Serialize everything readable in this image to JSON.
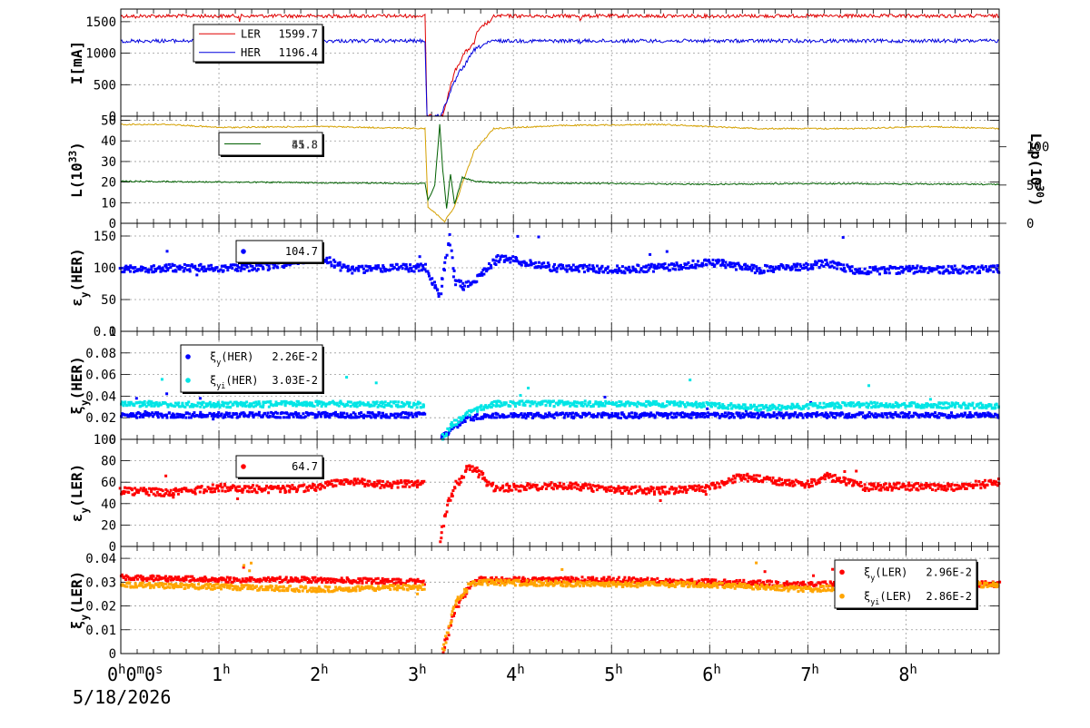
{
  "date_label": "5/18/2026",
  "x_ticks": [
    "0h0m0s",
    "1h",
    "2h",
    "3h",
    "4h",
    "5h",
    "6h",
    "7h",
    "8h"
  ],
  "colors": {
    "LER": "#e00000",
    "HER": "#0000dd",
    "lum": "#d4a000",
    "lsp": "#006000",
    "cyan": "#00e5e5",
    "orange": "#ffa500"
  },
  "chart_data": [
    {
      "type": "line",
      "ylabel": "I[mA]",
      "ylim": [
        0,
        1700
      ],
      "yticks": [
        0,
        500,
        1000,
        1500
      ],
      "x_range_hours": [
        0,
        8.95
      ],
      "series": [
        {
          "name": "LER",
          "value": "1599.7",
          "color": "#e00000",
          "points": [
            [
              0,
              1590
            ],
            [
              0.14,
              1590
            ],
            [
              0.15,
              1540
            ],
            [
              0.17,
              1590
            ],
            [
              1.2,
              1590
            ],
            [
              1.21,
              1520
            ],
            [
              1.23,
              1590
            ],
            [
              3.1,
              1590
            ],
            [
              3.12,
              0
            ],
            [
              3.28,
              0
            ],
            [
              3.33,
              300
            ],
            [
              3.4,
              700
            ],
            [
              3.5,
              1000
            ],
            [
              3.6,
              1150
            ],
            [
              3.62,
              1300
            ],
            [
              3.7,
              1450
            ],
            [
              3.78,
              1520
            ],
            [
              3.8,
              1590
            ],
            [
              4.67,
              1590
            ],
            [
              4.68,
              1530
            ],
            [
              4.7,
              1590
            ],
            [
              8.95,
              1590
            ]
          ]
        },
        {
          "name": "HER",
          "value": "1196.4",
          "color": "#0000dd",
          "points": [
            [
              0,
              1195
            ],
            [
              0.14,
              1195
            ],
            [
              0.15,
              1150
            ],
            [
              0.16,
              1195
            ],
            [
              3.1,
              1195
            ],
            [
              3.12,
              0
            ],
            [
              3.26,
              0
            ],
            [
              3.36,
              400
            ],
            [
              3.45,
              700
            ],
            [
              3.5,
              800
            ],
            [
              3.6,
              1050
            ],
            [
              3.7,
              1140
            ],
            [
              3.8,
              1195
            ],
            [
              4.67,
              1195
            ],
            [
              4.68,
              1170
            ],
            [
              4.7,
              1195
            ],
            [
              8.95,
              1195
            ]
          ]
        }
      ]
    },
    {
      "type": "line",
      "ylabel": "L(10^33)",
      "ylabel_main": "L(10",
      "ylabel_sup": "33",
      "ylim": [
        0,
        52
      ],
      "yticks": [
        0,
        10,
        20,
        30,
        40,
        50
      ],
      "y2label_main": "Lsp(10",
      "y2label_sup": "30",
      "y2lim": [
        0,
        140
      ],
      "y2ticks": [
        0,
        50,
        100
      ],
      "series": [
        {
          "name": "",
          "value": "45.8",
          "color": "#d4a000",
          "points": [
            [
              0,
              48
            ],
            [
              0.5,
              48
            ],
            [
              1,
              46.5
            ],
            [
              2,
              47
            ],
            [
              3.1,
              46
            ],
            [
              3.13,
              8
            ],
            [
              3.3,
              1
            ],
            [
              3.4,
              8
            ],
            [
              3.5,
              22
            ],
            [
              3.6,
              35
            ],
            [
              3.8,
              46
            ],
            [
              4.5,
              47.5
            ],
            [
              5.5,
              48
            ],
            [
              6.5,
              46
            ],
            [
              7.5,
              46
            ],
            [
              8.2,
              47
            ],
            [
              8.95,
              46
            ]
          ]
        },
        {
          "name": "",
          "value": "51.3",
          "color": "#006000",
          "axis": "y2",
          "points": [
            [
              0,
              55
            ],
            [
              1,
              54
            ],
            [
              2,
              53
            ],
            [
              3.1,
              52
            ],
            [
              3.13,
              30
            ],
            [
              3.2,
              50
            ],
            [
              3.25,
              130
            ],
            [
              3.28,
              70
            ],
            [
              3.32,
              20
            ],
            [
              3.36,
              65
            ],
            [
              3.4,
              25
            ],
            [
              3.48,
              60
            ],
            [
              3.6,
              55
            ],
            [
              3.8,
              53
            ],
            [
              5,
              52
            ],
            [
              6,
              51
            ],
            [
              7,
              52
            ],
            [
              8.95,
              51
            ]
          ]
        }
      ]
    },
    {
      "type": "scatter",
      "ylabel": "εy(HER)",
      "ylabel_main": "ε",
      "ylabel_sub": "y",
      "ylabel_tail": "(HER)",
      "ylim": [
        0,
        170
      ],
      "yticks": [
        0,
        50,
        100,
        150
      ],
      "series": [
        {
          "name": "",
          "value": "104.7",
          "color": "#0000ff",
          "points": [
            [
              0,
              97
            ],
            [
              0.5,
              100
            ],
            [
              1,
              99
            ],
            [
              1.5,
              102
            ],
            [
              1.8,
              110
            ],
            [
              2,
              120
            ],
            [
              2.3,
              97
            ],
            [
              2.8,
              100
            ],
            [
              3.1,
              100
            ],
            [
              3.2,
              70
            ],
            [
              3.25,
              55
            ],
            [
              3.3,
              100
            ],
            [
              3.35,
              150
            ],
            [
              3.4,
              80
            ],
            [
              3.5,
              70
            ],
            [
              3.6,
              78
            ],
            [
              3.7,
              95
            ],
            [
              3.85,
              115
            ],
            [
              4,
              112
            ],
            [
              4.4,
              100
            ],
            [
              5,
              97
            ],
            [
              5.5,
              100
            ],
            [
              6,
              108
            ],
            [
              6.2,
              105
            ],
            [
              6.5,
              97
            ],
            [
              7,
              103
            ],
            [
              7.2,
              107
            ],
            [
              7.5,
              95
            ],
            [
              8,
              97
            ],
            [
              8.5,
              97
            ],
            [
              8.95,
              98
            ]
          ]
        }
      ]
    },
    {
      "type": "scatter",
      "ylabel": "ξy(HER)",
      "ylabel_main": "ξ",
      "ylabel_sub": "y",
      "ylabel_tail": "(HER)",
      "ylim": [
        0,
        0.1
      ],
      "yticks": [
        0,
        0.02,
        0.04,
        0.06,
        0.08,
        0.1
      ],
      "ytick_labels": [
        "0",
        "0.02",
        "0.04",
        "0.06",
        "0.08",
        "0.1"
      ],
      "series": [
        {
          "name": "ξy(HER)",
          "name_main": "ξ",
          "name_sub": "y",
          "name_tail": "(HER)",
          "value": "2.26E-2",
          "color": "#0000ff",
          "points": [
            [
              0,
              0.0225
            ],
            [
              3.1,
              0.0225
            ],
            [
              3.12,
              null
            ],
            [
              3.27,
              0.001
            ],
            [
              3.4,
              0.012
            ],
            [
              3.5,
              0.018
            ],
            [
              3.7,
              0.022
            ],
            [
              8.95,
              0.0225
            ]
          ]
        },
        {
          "name": "ξyi(HER)",
          "name_main": "ξ",
          "name_sub": "yi",
          "name_tail": "(HER)",
          "value": "3.03E-2",
          "color": "#00e5e5",
          "points": [
            [
              0,
              0.033
            ],
            [
              1,
              0.032
            ],
            [
              2,
              0.033
            ],
            [
              3.1,
              0.032
            ],
            [
              3.12,
              null
            ],
            [
              3.28,
              0.002
            ],
            [
              3.4,
              0.015
            ],
            [
              3.6,
              0.027
            ],
            [
              3.8,
              0.033
            ],
            [
              5,
              0.033
            ],
            [
              6,
              0.032
            ],
            [
              6.5,
              0.029
            ],
            [
              7.5,
              0.032
            ],
            [
              8.95,
              0.031
            ]
          ]
        }
      ]
    },
    {
      "type": "scatter",
      "ylabel": "εy(LER)",
      "ylabel_main": "ε",
      "ylabel_sub": "y",
      "ylabel_tail": "(LER)",
      "ylim": [
        0,
        100
      ],
      "yticks": [
        0,
        20,
        40,
        60,
        80,
        100
      ],
      "series": [
        {
          "name": "",
          "value": "64.7",
          "color": "#ff0000",
          "points": [
            [
              0,
              52
            ],
            [
              0.5,
              50
            ],
            [
              1,
              55
            ],
            [
              1.5,
              53
            ],
            [
              2,
              55
            ],
            [
              2.3,
              62
            ],
            [
              2.6,
              58
            ],
            [
              3.1,
              58
            ],
            [
              3.15,
              null
            ],
            [
              3.25,
              5
            ],
            [
              3.3,
              30
            ],
            [
              3.4,
              55
            ],
            [
              3.55,
              75
            ],
            [
              3.65,
              68
            ],
            [
              3.8,
              55
            ],
            [
              4,
              55
            ],
            [
              4.5,
              57
            ],
            [
              5,
              53
            ],
            [
              5.5,
              52
            ],
            [
              6,
              55
            ],
            [
              6.3,
              65
            ],
            [
              6.6,
              62
            ],
            [
              7,
              58
            ],
            [
              7.2,
              65
            ],
            [
              7.6,
              55
            ],
            [
              8,
              56
            ],
            [
              8.5,
              55
            ],
            [
              8.95,
              60
            ]
          ]
        }
      ]
    },
    {
      "type": "scatter",
      "ylabel": "ξy(LER)",
      "ylabel_main": "ξ",
      "ylabel_sub": "y",
      "ylabel_tail": "(LER)",
      "ylim": [
        0,
        0.045
      ],
      "yticks": [
        0,
        0.01,
        0.02,
        0.03,
        0.04
      ],
      "ytick_labels": [
        "0",
        "0.01",
        "0.02",
        "0.03",
        "0.04"
      ],
      "series": [
        {
          "name": "ξy(LER)",
          "name_main": "ξ",
          "name_sub": "y",
          "name_tail": "(LER)",
          "value": "2.96E-2",
          "color": "#ff0000",
          "points": [
            [
              0,
              0.032
            ],
            [
              1,
              0.031
            ],
            [
              2,
              0.031
            ],
            [
              3.1,
              0.03
            ],
            [
              3.12,
              null
            ],
            [
              3.28,
              0.001
            ],
            [
              3.4,
              0.018
            ],
            [
              3.55,
              0.028
            ],
            [
              3.65,
              0.031
            ],
            [
              5,
              0.031
            ],
            [
              6,
              0.03
            ],
            [
              7,
              0.029
            ],
            [
              8,
              0.03
            ],
            [
              8.95,
              0.029
            ]
          ]
        },
        {
          "name": "ξyi(LER)",
          "name_main": "ξ",
          "name_sub": "yi",
          "name_tail": "(LER)",
          "value": "2.86E-2",
          "color": "#ffa500",
          "points": [
            [
              0,
              0.029
            ],
            [
              1,
              0.028
            ],
            [
              2,
              0.027
            ],
            [
              3.1,
              0.028
            ],
            [
              3.12,
              null
            ],
            [
              3.28,
              0.001
            ],
            [
              3.4,
              0.02
            ],
            [
              3.55,
              0.029
            ],
            [
              3.65,
              0.03
            ],
            [
              5,
              0.029
            ],
            [
              6,
              0.029
            ],
            [
              7,
              0.027
            ],
            [
              8,
              0.029
            ],
            [
              8.95,
              0.029
            ]
          ]
        }
      ]
    }
  ]
}
